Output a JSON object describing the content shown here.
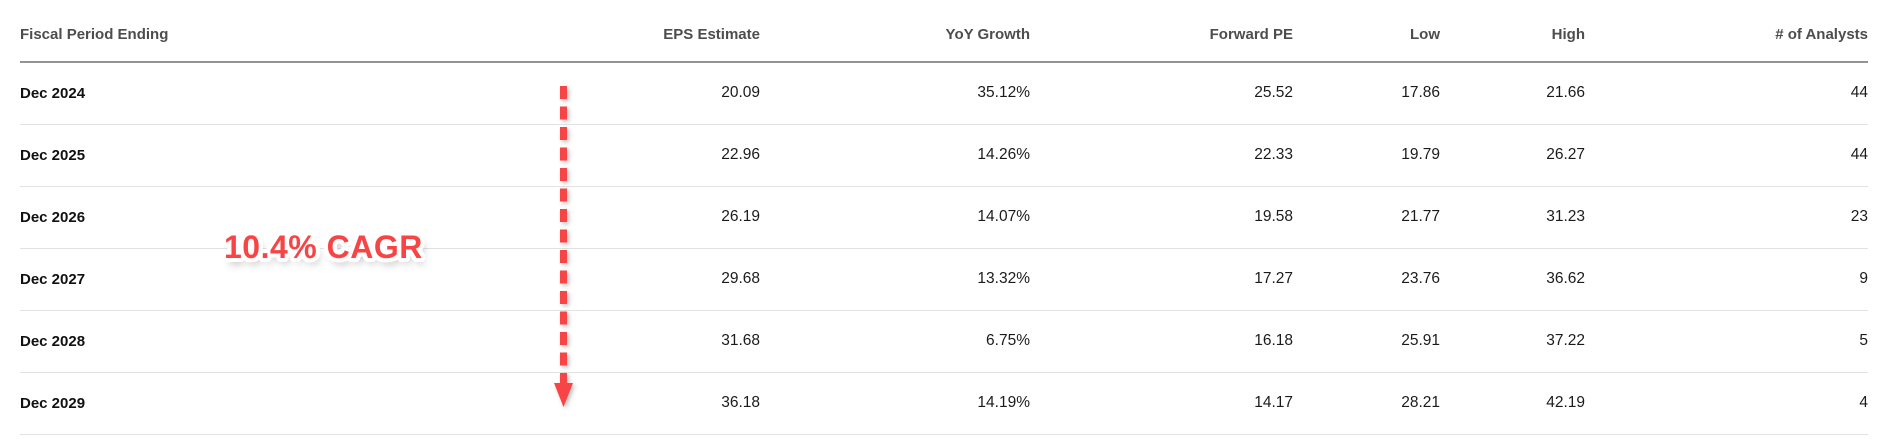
{
  "colors": {
    "accent_red": "#f74545",
    "header_text": "#4d4d4d",
    "body_text": "#1b1b1b",
    "header_rule": "#949494",
    "row_rule": "#e2e2e2"
  },
  "table": {
    "columns": [
      {
        "label": "Fiscal Period Ending",
        "align": "left"
      },
      {
        "label": "EPS Estimate",
        "align": "right"
      },
      {
        "label": "YoY Growth",
        "align": "right"
      },
      {
        "label": "Forward PE",
        "align": "right"
      },
      {
        "label": "Low",
        "align": "right"
      },
      {
        "label": "High",
        "align": "right"
      },
      {
        "label": "# of Analysts",
        "align": "right"
      }
    ],
    "rows": [
      {
        "period": "Dec 2024",
        "values": [
          "20.09",
          "35.12%",
          "25.52",
          "17.86",
          "21.66",
          "44"
        ]
      },
      {
        "period": "Dec 2025",
        "values": [
          "22.96",
          "14.26%",
          "22.33",
          "19.79",
          "26.27",
          "44"
        ]
      },
      {
        "period": "Dec 2026",
        "values": [
          "26.19",
          "14.07%",
          "19.58",
          "21.77",
          "31.23",
          "23"
        ]
      },
      {
        "period": "Dec 2027",
        "values": [
          "29.68",
          "13.32%",
          "17.27",
          "23.76",
          "36.62",
          "9"
        ]
      },
      {
        "period": "Dec 2028",
        "values": [
          "31.68",
          "6.75%",
          "16.18",
          "25.91",
          "37.22",
          "5"
        ]
      },
      {
        "period": "Dec 2029",
        "values": [
          "36.18",
          "14.19%",
          "14.17",
          "28.21",
          "42.19",
          "4"
        ]
      }
    ]
  },
  "annotation": {
    "label": "10.4% CAGR",
    "arrow_color": "#f74545"
  }
}
